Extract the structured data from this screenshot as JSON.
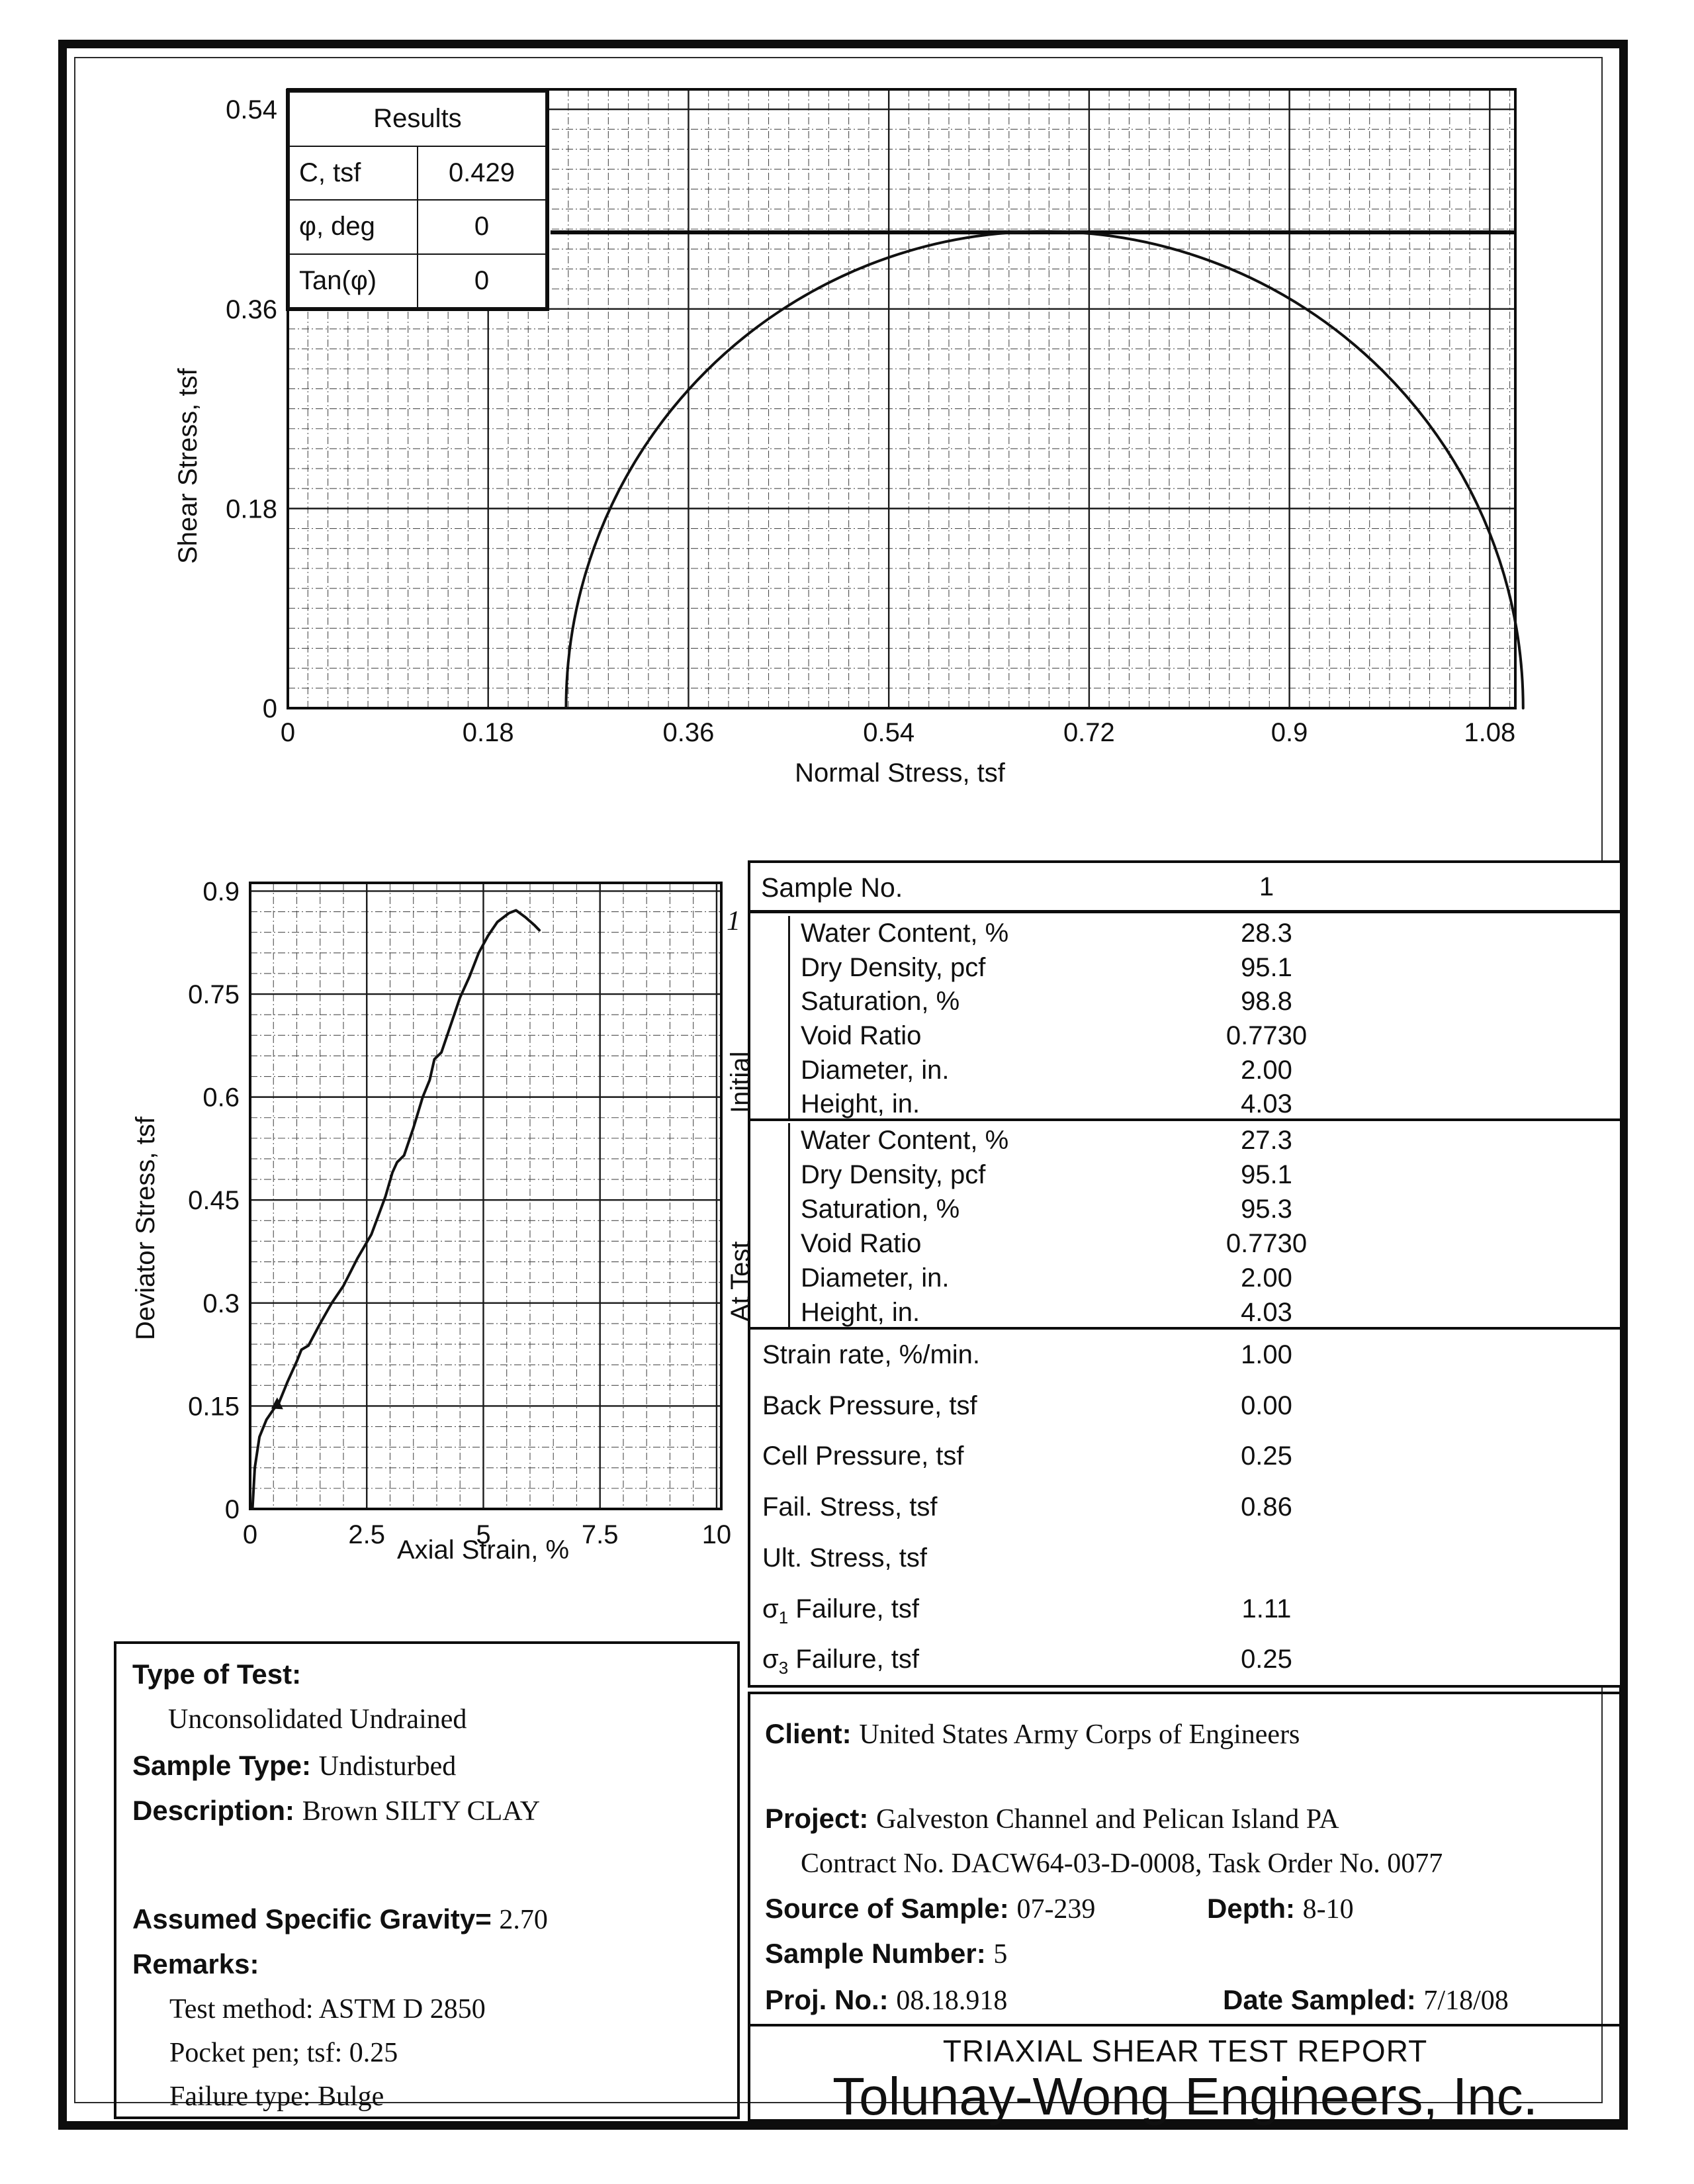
{
  "results_table": {
    "title": "Results",
    "rows": [
      [
        "C, tsf",
        "0.429"
      ],
      [
        "φ, deg",
        "0"
      ],
      [
        "Tan(φ)",
        "0"
      ]
    ]
  },
  "chart_data": [
    {
      "id": "mohr",
      "type": "line",
      "title": "Mohr circle - total stress",
      "xlabel": "Normal Stress, tsf",
      "ylabel": "Shear Stress, tsf",
      "xlim": [
        0,
        1.103
      ],
      "ylim": [
        0,
        0.558
      ],
      "x_ticks": [
        0,
        0.18,
        0.36,
        0.54,
        0.72,
        0.9,
        1.08
      ],
      "x_tick_labels": [
        "0",
        "0.18",
        "0.36",
        "0.54",
        "0.72",
        "0.9",
        "1.08"
      ],
      "y_ticks": [
        0,
        0.18,
        0.36,
        0.54
      ],
      "y_tick_labels": [
        "0",
        "0.18",
        "0.36",
        "0.54"
      ],
      "x_minor": 0.018,
      "y_minor": 0.018,
      "grid": true,
      "series": [
        {
          "name": "failure-envelope",
          "kind": "hline",
          "y": 0.429,
          "x_start": 0.236,
          "x_end": 1.103
        },
        {
          "name": "mohr-circle",
          "kind": "circle",
          "center_x": 0.68,
          "center_y": 0,
          "radius": 0.43,
          "sigma3": 0.25,
          "sigma1": 1.11
        }
      ]
    },
    {
      "id": "strain",
      "type": "line",
      "title": "Deviator stress vs axial strain",
      "xlabel": "Axial Strain, %",
      "ylabel": "Deviator Stress, tsf",
      "xlim": [
        0,
        10.1
      ],
      "ylim": [
        0,
        0.912
      ],
      "x_ticks": [
        0,
        2.5,
        5,
        7.5,
        10
      ],
      "x_tick_labels": [
        "0",
        "2.5",
        "5",
        "7.5",
        "10"
      ],
      "y_ticks": [
        0,
        0.15,
        0.3,
        0.45,
        0.6,
        0.75,
        0.9
      ],
      "y_tick_labels": [
        "0",
        "0.15",
        "0.3",
        "0.45",
        "0.6",
        "0.75",
        "0.9"
      ],
      "x_minor": 0.5,
      "y_minor": 0.03,
      "grid": true,
      "curve_label": "1",
      "series": [
        {
          "name": "sample-1",
          "kind": "polyline",
          "x": [
            0.05,
            0.1,
            0.2,
            0.35,
            0.5,
            0.62,
            0.8,
            1.0,
            1.1,
            1.25,
            1.5,
            1.75,
            2.0,
            2.3,
            2.6,
            2.9,
            3.05,
            3.15,
            3.3,
            3.5,
            3.7,
            3.85,
            3.95,
            4.1,
            4.3,
            4.5,
            4.7,
            4.9,
            5.1,
            5.3,
            5.55,
            5.7,
            5.9,
            6.1,
            6.2
          ],
          "y": [
            0.0,
            0.06,
            0.105,
            0.13,
            0.145,
            0.155,
            0.185,
            0.215,
            0.232,
            0.238,
            0.27,
            0.3,
            0.325,
            0.365,
            0.4,
            0.455,
            0.49,
            0.505,
            0.515,
            0.555,
            0.6,
            0.625,
            0.655,
            0.665,
            0.705,
            0.745,
            0.775,
            0.81,
            0.835,
            0.855,
            0.868,
            0.872,
            0.862,
            0.85,
            0.843
          ],
          "marker": {
            "x": 0.58,
            "y": 0.152
          }
        }
      ]
    }
  ],
  "sample_table": {
    "header_label": "Sample No.",
    "header_value": "1",
    "sections": [
      {
        "label": "Initial",
        "rows": [
          [
            "Water Content, %",
            "28.3"
          ],
          [
            "Dry Density, pcf",
            "95.1"
          ],
          [
            "Saturation, %",
            "98.8"
          ],
          [
            "Void Ratio",
            "0.7730"
          ],
          [
            "Diameter, in.",
            "2.00"
          ],
          [
            "Height, in.",
            "4.03"
          ]
        ]
      },
      {
        "label": "At Test",
        "rows": [
          [
            "Water Content, %",
            "27.3"
          ],
          [
            "Dry Density, pcf",
            "95.1"
          ],
          [
            "Saturation, %",
            "95.3"
          ],
          [
            "Void Ratio",
            "0.7730"
          ],
          [
            "Diameter, in.",
            "2.00"
          ],
          [
            "Height, in.",
            "4.03"
          ]
        ]
      }
    ],
    "rows": [
      {
        "label": "Strain rate, %/min.",
        "value": "1.00"
      },
      {
        "label": "Back Pressure, tsf",
        "value": "0.00"
      },
      {
        "label": "Cell Pressure, tsf",
        "value": "0.25"
      },
      {
        "label": "Fail. Stress, tsf",
        "value": "0.86"
      },
      {
        "label": "Ult. Stress, tsf",
        "value": ""
      },
      {
        "pre": "σ",
        "sub": "1",
        "post": " Failure, tsf",
        "value": "1.11"
      },
      {
        "pre": "σ",
        "sub": "3",
        "post": " Failure, tsf",
        "value": "0.25"
      }
    ]
  },
  "test_info": {
    "type_of_test_label": "Type of Test:",
    "type_of_test_value": "Unconsolidated Undrained",
    "sample_type_label": "Sample Type:",
    "sample_type_value": "Undisturbed",
    "description_label": "Description:",
    "description_value": "Brown SILTY CLAY",
    "specific_gravity_label": "Assumed Specific Gravity=",
    "specific_gravity_value": "2.70",
    "remarks_label": "Remarks:",
    "remarks": [
      "Test method: ASTM D 2850",
      "Pocket pen; tsf: 0.25",
      "Failure type: Bulge"
    ]
  },
  "project_info": {
    "client_label": "Client:",
    "client": "United States Army Corps of Engineers",
    "project_label": "Project:",
    "project": "Galveston Channel and Pelican Island PA",
    "contract": "Contract No. DACW64-03-D-0008, Task Order No. 0077",
    "source_label": "Source of Sample:",
    "source": "07-239",
    "depth_label": "Depth:",
    "depth": "8-10",
    "sample_number_label": "Sample Number:",
    "sample_number": "5",
    "proj_no_label": "Proj. No.:",
    "proj_no": "08.18.918",
    "date_sampled_label": "Date Sampled:",
    "date_sampled": "7/18/08",
    "report_title": "TRIAXIAL SHEAR TEST REPORT",
    "company": "Tolunay-Wong Engineers, Inc."
  }
}
